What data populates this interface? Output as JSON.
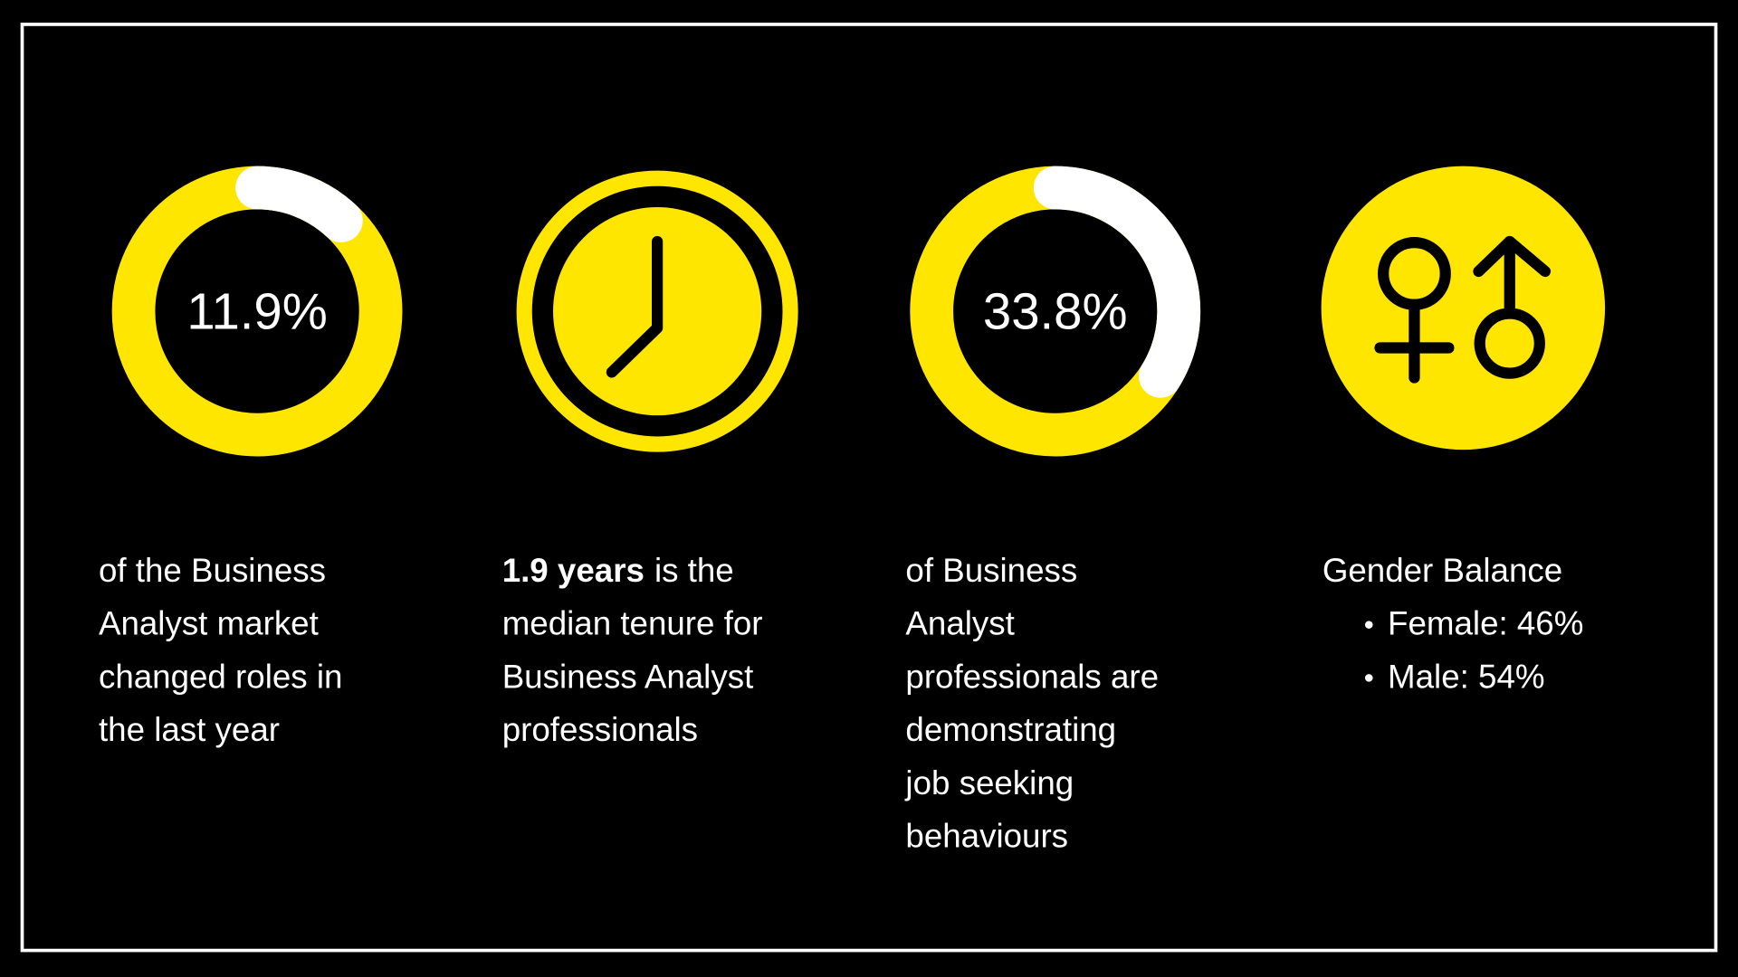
{
  "stats": [
    {
      "value": 11.9,
      "label": "11.9%",
      "lines": [
        "of the Business",
        "Analyst market",
        "changed roles in",
        "the last year"
      ]
    },
    {
      "bold": "1.9 years",
      "lines": [
        "is the",
        "median tenure for",
        "Business Analyst",
        "professionals"
      ]
    },
    {
      "value": 33.8,
      "label": "33.8%",
      "lines": [
        "of Business",
        "Analyst",
        "professionals are",
        "demonstrating",
        "job seeking",
        "behaviours"
      ]
    },
    {
      "heading": "Gender Balance",
      "bullets": [
        "Female: 46%",
        "Male: 54%"
      ]
    }
  ]
}
